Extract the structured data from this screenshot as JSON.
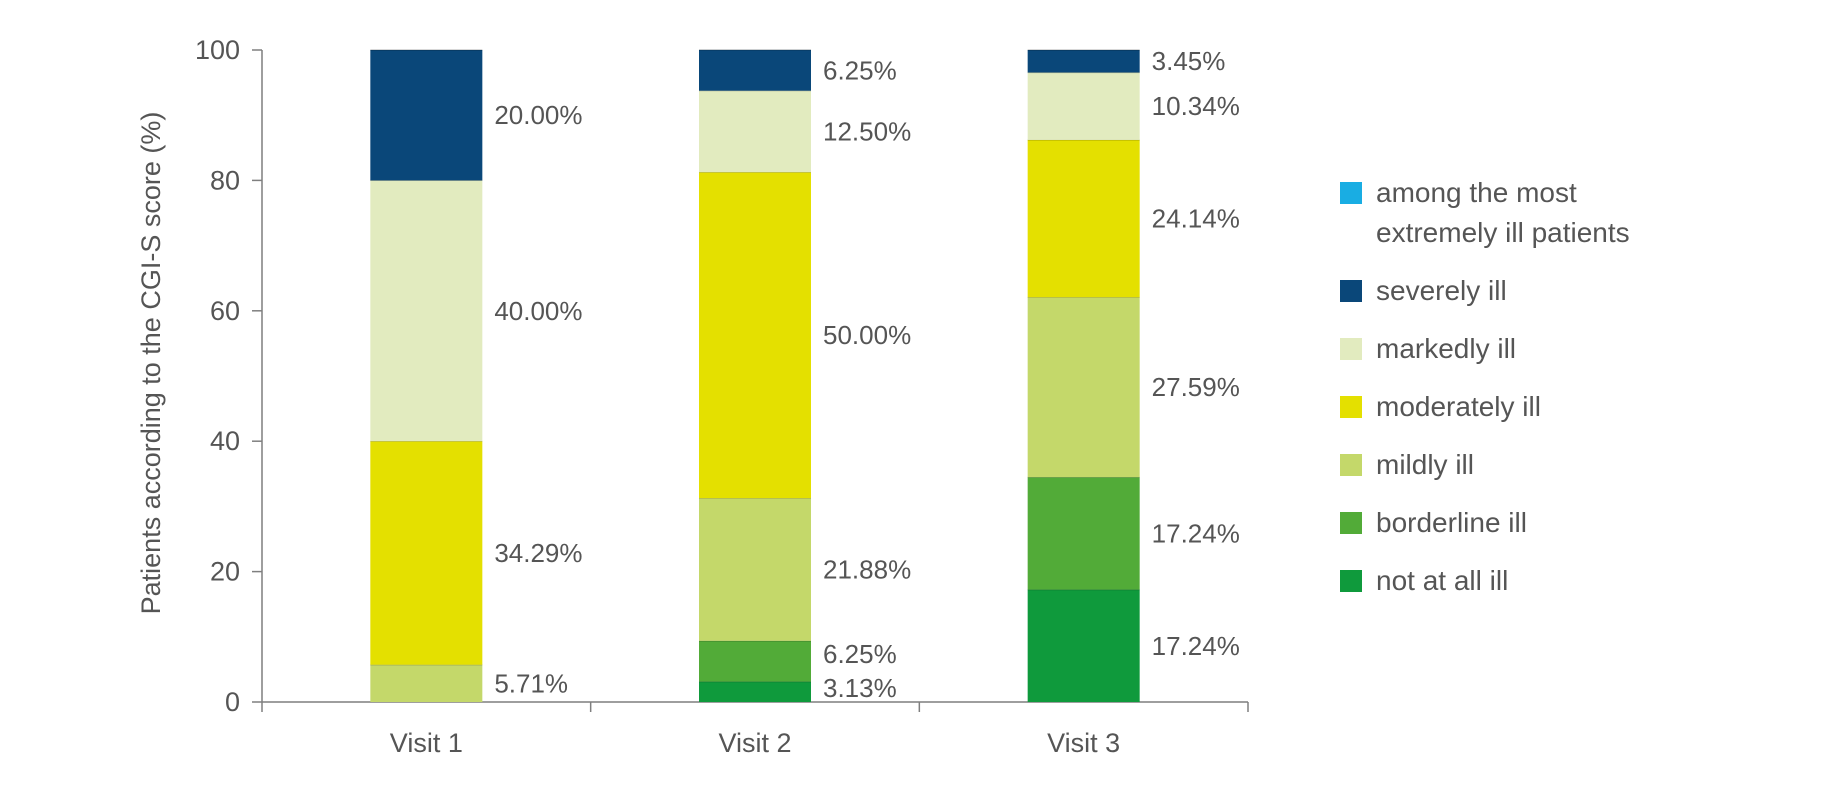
{
  "chart_data": {
    "type": "bar",
    "stacked": true,
    "ylabel": "Patients according to the CGI-S score (%)",
    "xlabel": "",
    "ylim": [
      0,
      100
    ],
    "yticks": [
      0,
      20,
      40,
      60,
      80,
      100
    ],
    "categories": [
      "Visit 1",
      "Visit 2",
      "Visit 3"
    ],
    "legend_position": "right",
    "series": [
      {
        "name": "not at all ill",
        "color": "#0f9a3c",
        "values": [
          0,
          3.13,
          17.24
        ],
        "labels": [
          "",
          "3.13%",
          "17.24%"
        ]
      },
      {
        "name": "borderline ill",
        "color": "#52ab38",
        "values": [
          0,
          6.25,
          17.24
        ],
        "labels": [
          "",
          "6.25%",
          "17.24%"
        ]
      },
      {
        "name": "mildly ill",
        "color": "#c4d86a",
        "values": [
          5.71,
          21.88,
          27.59
        ],
        "labels": [
          "5.71%",
          "21.88%",
          "27.59%"
        ]
      },
      {
        "name": "moderately ill",
        "color": "#e4e000",
        "values": [
          34.29,
          50.0,
          24.14
        ],
        "labels": [
          "34.29%",
          "50.00%",
          "24.14%"
        ]
      },
      {
        "name": "markedly ill",
        "color": "#e2ebbf",
        "values": [
          40.0,
          12.5,
          10.34
        ],
        "labels": [
          "40.00%",
          "12.50%",
          "10.34%"
        ]
      },
      {
        "name": "severely ill",
        "color": "#0a4779",
        "values": [
          20.0,
          6.25,
          3.45
        ],
        "labels": [
          "20.00%",
          "6.25%",
          "3.45%"
        ]
      },
      {
        "name": "among the most extremely ill patients",
        "color": "#19ade3",
        "values": [
          0,
          0,
          0
        ],
        "labels": [
          "",
          "",
          ""
        ]
      }
    ],
    "legend_order": [
      "among the most extremely ill patients",
      "severely ill",
      "markedly ill",
      "moderately ill",
      "mildly ill",
      "borderline ill",
      "not at all ill"
    ]
  }
}
